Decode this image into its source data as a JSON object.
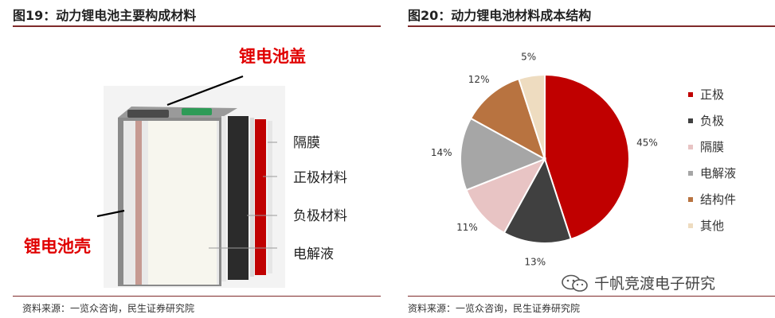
{
  "left_figure": {
    "title": "图19：动力锂电池主要构成材料",
    "labels": {
      "cap": "锂电池盖",
      "shell": "锂电池壳",
      "separator": "隔膜",
      "cathode": "正极材料",
      "anode": "负极材料",
      "electrolyte": "电解液"
    },
    "source": "资料来源：一览众咨询，民生证券研究院"
  },
  "right_figure": {
    "title": "图20：动力锂电池材料成本结构",
    "source": "资料来源：一览众咨询，民生证券研究院",
    "chart_data": {
      "type": "pie",
      "categories": [
        "正极",
        "负极",
        "隔膜",
        "电解液",
        "结构件",
        "其他"
      ],
      "values": [
        45,
        13,
        11,
        14,
        12,
        5
      ],
      "value_labels": [
        "45%",
        "13%",
        "11%",
        "14%",
        "12%",
        "5%"
      ],
      "colors": [
        "#c00000",
        "#404040",
        "#e8c4c4",
        "#a6a6a6",
        "#b87340",
        "#eedcc0"
      ],
      "legend_position": "right"
    }
  },
  "watermark": "千帆竞渡电子研究"
}
